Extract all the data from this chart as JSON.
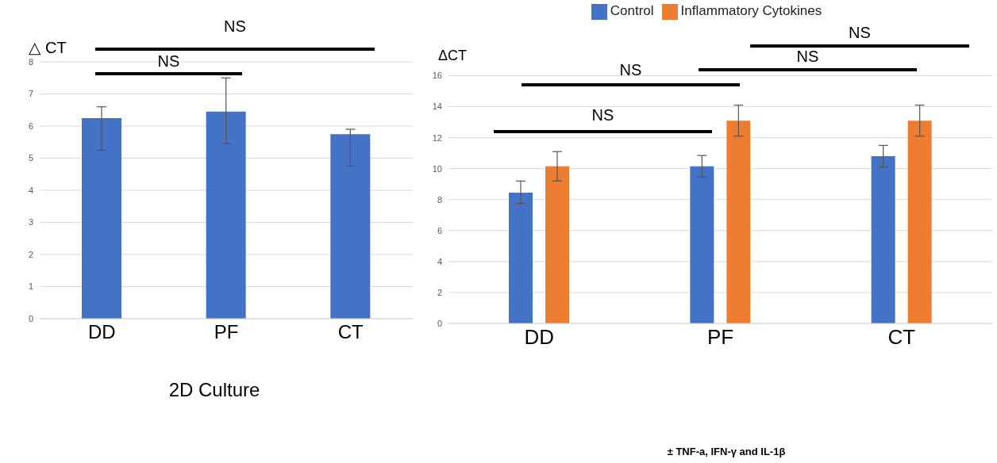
{
  "chart_data": [
    {
      "type": "bar",
      "xlabel": "2D Culture",
      "ylabel": "△ CT",
      "categories": [
        "DD",
        "PF",
        "CT"
      ],
      "values": [
        6.25,
        6.45,
        5.75
      ],
      "color": "#4472c4",
      "errors": [
        [
          5.25,
          6.6
        ],
        [
          5.45,
          7.5
        ],
        [
          4.75,
          5.9
        ]
      ],
      "ylim": [
        0,
        8
      ],
      "yticks": [
        0,
        1,
        2,
        3,
        4,
        5,
        6,
        7,
        8
      ],
      "grid": "y",
      "annotations": [
        "NS",
        "NS"
      ]
    },
    {
      "type": "bar",
      "xlabel": "± TNF-a, IFN-γ and IL-1β",
      "ylabel": "ΔCT",
      "categories": [
        "DD",
        "PF",
        "CT"
      ],
      "series": [
        {
          "name": "Control",
          "color": "#4472c4",
          "values": [
            8.45,
            10.15,
            10.8
          ],
          "errors": [
            [
              7.75,
              9.2
            ],
            [
              9.45,
              10.85
            ],
            [
              10.1,
              11.5
            ]
          ]
        },
        {
          "name": "Inflammatory Cytokines",
          "color": "#ed7d31",
          "values": [
            10.15,
            13.1,
            13.1
          ],
          "errors": [
            [
              9.2,
              11.1
            ],
            [
              12.1,
              14.1
            ],
            [
              12.1,
              14.1
            ]
          ]
        }
      ],
      "ylim": [
        0,
        16
      ],
      "yticks": [
        0,
        2,
        4,
        6,
        8,
        10,
        12,
        14,
        16
      ],
      "grid": "y",
      "legend": "top",
      "annotations": [
        "NS",
        "NS",
        "NS",
        "NS"
      ]
    }
  ]
}
